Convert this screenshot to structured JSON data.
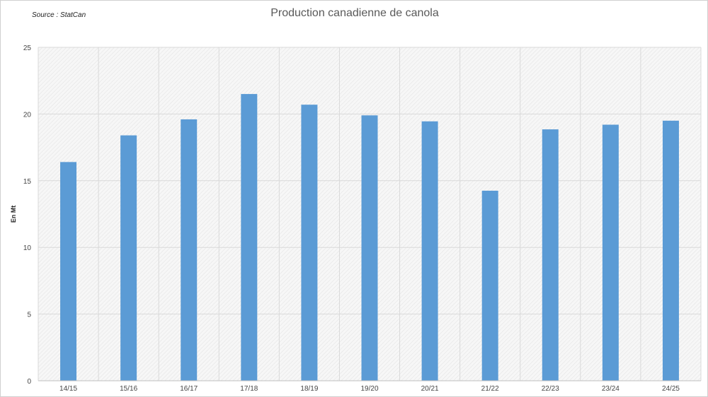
{
  "source_label": "Source : StatCan",
  "chart_data": {
    "type": "bar",
    "title": "Production canadienne de canola",
    "xlabel": "",
    "ylabel": "En Mt",
    "categories": [
      "14/15",
      "15/16",
      "16/17",
      "17/18",
      "18/19",
      "19/20",
      "20/21",
      "21/22",
      "22/23",
      "23/24",
      "24/25"
    ],
    "values": [
      16.4,
      18.4,
      19.6,
      21.5,
      20.7,
      19.9,
      19.45,
      14.25,
      18.85,
      19.2,
      19.5
    ],
    "ylim": [
      0,
      25
    ],
    "yticks": [
      "0",
      "5",
      "10",
      "15",
      "20",
      "25"
    ],
    "grid": true,
    "legend": "none",
    "bar_color": "#5b9bd5",
    "grid_color": "#d9d9d9"
  }
}
